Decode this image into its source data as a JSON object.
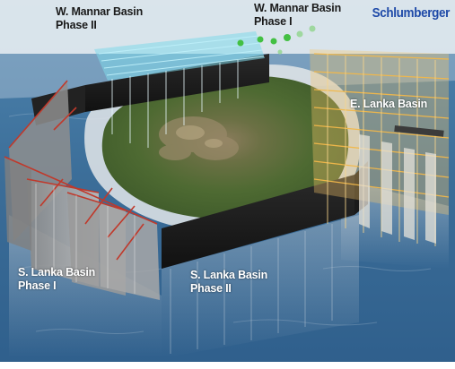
{
  "logo": {
    "text": "Schlumberger",
    "color": "#1f4aa8"
  },
  "basins": {
    "w_mannar_phase2": {
      "line1": "W. Mannar Basin",
      "line2": "Phase II"
    },
    "w_mannar_phase1": {
      "line1": "W. Mannar Basin",
      "line2": "Phase I"
    },
    "e_lanka": {
      "line1": "E. Lanka Basin"
    },
    "s_lanka_phase1": {
      "line1": "S. Lanka Basin",
      "line2": "Phase I"
    },
    "s_lanka_phase2": {
      "line1": "S. Lanka Basin",
      "line2": "Phase II"
    }
  },
  "colors": {
    "ocean": "#3d6f9a",
    "land": "#4f6b32",
    "shelf": "#d9dde2",
    "seismic_cyan": "#6ed6ea",
    "seismic_orange": "#f2b84a",
    "seismic_red": "#c0392b",
    "well_marker": "#43c043"
  }
}
